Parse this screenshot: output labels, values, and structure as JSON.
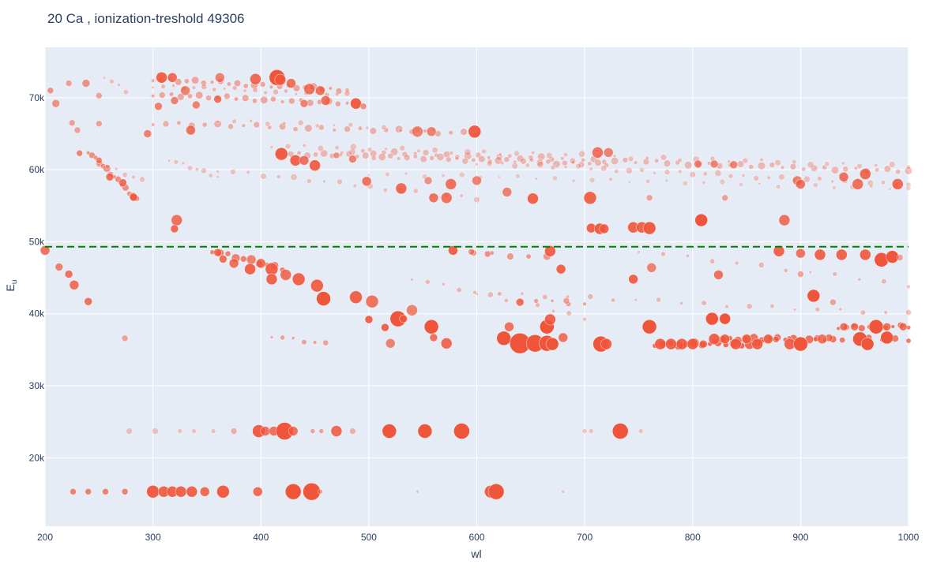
{
  "chart_data": {
    "type": "scatter",
    "title": "20 Ca , ionization-treshold 49306",
    "xlabel": "wl",
    "ylabel_main": "E",
    "ylabel_sub": "u",
    "xlim": [
      200,
      1000
    ],
    "ylim": [
      10500,
      77000
    ],
    "x_ticks": [
      {
        "value": 200,
        "label": "200"
      },
      {
        "value": 300,
        "label": "300"
      },
      {
        "value": 400,
        "label": "400"
      },
      {
        "value": 500,
        "label": "500"
      },
      {
        "value": 600,
        "label": "600"
      },
      {
        "value": 700,
        "label": "700"
      },
      {
        "value": 800,
        "label": "800"
      },
      {
        "value": 900,
        "label": "900"
      },
      {
        "value": 1000,
        "label": "1000"
      }
    ],
    "y_ticks": [
      {
        "value": 20000,
        "label": "20k"
      },
      {
        "value": 30000,
        "label": "30k"
      },
      {
        "value": 40000,
        "label": "40k"
      },
      {
        "value": 50000,
        "label": "50k"
      },
      {
        "value": 60000,
        "label": "60k"
      },
      {
        "value": 70000,
        "label": "70k"
      }
    ],
    "threshold": {
      "value": 49306,
      "color": "#008000",
      "style": "dash"
    },
    "grid": true,
    "plot_bg": "#e5ecf6",
    "marker_color": "#ef553b",
    "points": [
      [
        226,
        15300,
        4,
        0.7
      ],
      [
        240,
        15300,
        4,
        0.7
      ],
      [
        256,
        15300,
        4,
        0.7
      ],
      [
        274,
        15300,
        4,
        0.7
      ],
      [
        300,
        15300,
        8,
        0.95
      ],
      [
        310,
        15300,
        7,
        0.9
      ],
      [
        318,
        15300,
        7,
        0.9
      ],
      [
        326,
        15300,
        7,
        0.9
      ],
      [
        336,
        15300,
        7,
        0.9
      ],
      [
        348,
        15300,
        6,
        0.85
      ],
      [
        365,
        15300,
        8,
        0.95
      ],
      [
        397,
        15300,
        6,
        0.85
      ],
      [
        430,
        15300,
        10,
        1
      ],
      [
        447,
        15300,
        11,
        1
      ],
      [
        455,
        15300,
        3,
        0.5
      ],
      [
        545,
        15300,
        2,
        0.3
      ],
      [
        613,
        15300,
        8,
        0.95
      ],
      [
        618,
        15300,
        10,
        1
      ],
      [
        680,
        15300,
        2,
        0.3
      ],
      [
        278,
        23700,
        4,
        0.3
      ],
      [
        302,
        23700,
        4,
        0.3
      ],
      [
        325,
        23700,
        3,
        0.3
      ],
      [
        338,
        23700,
        3,
        0.3
      ],
      [
        356,
        23700,
        3,
        0.3
      ],
      [
        375,
        23700,
        4,
        0.4
      ],
      [
        398,
        23700,
        8,
        0.95
      ],
      [
        404,
        23700,
        6,
        0.8
      ],
      [
        412,
        23700,
        6,
        0.8
      ],
      [
        422,
        23700,
        11,
        1
      ],
      [
        430,
        23700,
        6,
        0.8
      ],
      [
        448,
        23700,
        3,
        0.5
      ],
      [
        456,
        23700,
        3,
        0.5
      ],
      [
        470,
        23700,
        7,
        0.85
      ],
      [
        485,
        23700,
        4,
        0.4
      ],
      [
        519,
        23700,
        9,
        1
      ],
      [
        552,
        23700,
        9,
        1
      ],
      [
        586,
        23700,
        10,
        1
      ],
      [
        700,
        23700,
        3,
        0.3
      ],
      [
        706,
        23700,
        3,
        0.3
      ],
      [
        733,
        23700,
        10,
        1
      ],
      [
        752,
        23700,
        3,
        0.3
      ],
      [
        625,
        36600,
        9,
        1
      ],
      [
        640,
        35900,
        13,
        1
      ],
      [
        654,
        35900,
        11,
        1
      ],
      [
        665,
        35900,
        10,
        1
      ],
      [
        670,
        35800,
        8,
        1
      ],
      [
        715,
        35800,
        10,
        1
      ],
      [
        720,
        35800,
        7,
        0.9
      ],
      [
        770,
        35800,
        7,
        0.9
      ],
      [
        780,
        35800,
        7,
        0.9
      ],
      [
        790,
        35800,
        7,
        0.9
      ],
      [
        800,
        35800,
        7,
        0.9
      ],
      [
        810,
        35800,
        5,
        0.8
      ],
      [
        820,
        36500,
        7,
        0.9
      ],
      [
        830,
        36500,
        6,
        0.9
      ],
      [
        840,
        35800,
        7,
        0.9
      ],
      [
        850,
        36500,
        6,
        0.9
      ],
      [
        860,
        35800,
        7,
        0.9
      ],
      [
        870,
        36500,
        6,
        0.9
      ],
      [
        890,
        35800,
        7,
        0.9
      ],
      [
        900,
        35800,
        9,
        1
      ],
      [
        920,
        36500,
        6,
        0.8
      ],
      [
        955,
        36500,
        9,
        1
      ],
      [
        962,
        35800,
        8,
        1
      ],
      [
        980,
        36700,
        8,
        1
      ],
      [
        995,
        38200,
        5,
        0.8
      ],
      [
        520,
        35900,
        6,
        0.7
      ],
      [
        560,
        36700,
        5,
        0.8
      ],
      [
        572,
        35900,
        7,
        0.85
      ],
      [
        630,
        38200,
        6,
        0.8
      ],
      [
        665,
        38200,
        9,
        1
      ],
      [
        668,
        39200,
        7,
        0.9
      ],
      [
        680,
        36700,
        6,
        0.8
      ],
      [
        760,
        38200,
        9,
        1
      ],
      [
        818,
        39300,
        8,
        1
      ],
      [
        830,
        39300,
        7,
        1
      ],
      [
        940,
        38200,
        5,
        0.8
      ],
      [
        950,
        38200,
        5,
        0.8
      ],
      [
        970,
        38200,
        9,
        1
      ],
      [
        980,
        38200,
        5,
        0.8
      ],
      [
        912,
        42500,
        8,
        1
      ],
      [
        500,
        39200,
        5,
        0.9
      ],
      [
        515,
        38100,
        5,
        0.9
      ],
      [
        527,
        39300,
        10,
        1
      ],
      [
        532,
        39300,
        5,
        0.9
      ],
      [
        540,
        40500,
        7,
        0.7
      ],
      [
        558,
        38200,
        9,
        1
      ],
      [
        640,
        41600,
        5,
        0.8
      ],
      [
        683,
        41800,
        4,
        0.5
      ],
      [
        900,
        45500,
        4,
        0.5
      ],
      [
        930,
        41600,
        4,
        0.5
      ],
      [
        360,
        48500,
        5,
        0.8
      ],
      [
        365,
        47600,
        5,
        0.8
      ],
      [
        375,
        47000,
        6,
        0.8
      ],
      [
        390,
        46200,
        7,
        0.9
      ],
      [
        400,
        47000,
        6,
        0.8
      ],
      [
        410,
        46200,
        8,
        0.9
      ],
      [
        410,
        44800,
        7,
        0.9
      ],
      [
        423,
        45400,
        7,
        0.8
      ],
      [
        435,
        44800,
        8,
        0.9
      ],
      [
        452,
        43900,
        8,
        0.9
      ],
      [
        458,
        42100,
        9,
        1
      ],
      [
        488,
        42300,
        8,
        0.9
      ],
      [
        503,
        41700,
        8,
        0.8
      ],
      [
        578,
        48800,
        6,
        0.9
      ],
      [
        595,
        48600,
        4,
        0.6
      ],
      [
        610,
        48300,
        4,
        0.6
      ],
      [
        668,
        48700,
        7,
        0.9
      ],
      [
        678,
        46200,
        6,
        0.9
      ],
      [
        745,
        44800,
        6,
        0.9
      ],
      [
        762,
        46400,
        6,
        0.7
      ],
      [
        824,
        45400,
        6,
        0.8
      ],
      [
        880,
        48700,
        7,
        0.9
      ],
      [
        900,
        48400,
        6,
        0.8
      ],
      [
        918,
        48200,
        7,
        0.9
      ],
      [
        938,
        48200,
        7,
        0.9
      ],
      [
        960,
        48200,
        7,
        0.9
      ],
      [
        975,
        47500,
        9,
        1
      ],
      [
        985,
        47900,
        8,
        1
      ],
      [
        992,
        47800,
        4,
        0.5
      ],
      [
        200,
        48800,
        6,
        0.8
      ],
      [
        213,
        46500,
        5,
        0.7
      ],
      [
        222,
        45500,
        5,
        0.8
      ],
      [
        227,
        44000,
        6,
        0.8
      ],
      [
        240,
        41700,
        5,
        0.8
      ],
      [
        274,
        36600,
        4,
        0.5
      ],
      [
        322,
        53000,
        7,
        0.8
      ],
      [
        320,
        51800,
        5,
        0.85
      ],
      [
        706,
        51900,
        6,
        0.9
      ],
      [
        714,
        51800,
        7,
        0.95
      ],
      [
        718,
        51800,
        6,
        0.9
      ],
      [
        745,
        52000,
        7,
        0.9
      ],
      [
        753,
        52000,
        7,
        0.9
      ],
      [
        760,
        51900,
        8,
        0.95
      ],
      [
        808,
        53000,
        8,
        1
      ],
      [
        885,
        53000,
        7,
        0.8
      ],
      [
        260,
        59000,
        5,
        0.8
      ],
      [
        272,
        58200,
        5,
        0.8
      ],
      [
        282,
        56200,
        5,
        0.9
      ],
      [
        250,
        61300,
        4,
        0.7
      ],
      [
        232,
        62300,
        4,
        0.7
      ],
      [
        555,
        58500,
        5,
        0.6
      ],
      [
        576,
        58000,
        7,
        0.8
      ],
      [
        600,
        58500,
        6,
        0.7
      ],
      [
        628,
        56900,
        6,
        0.7
      ],
      [
        652,
        56000,
        7,
        0.9
      ],
      [
        705,
        56100,
        8,
        0.9
      ],
      [
        760,
        56100,
        4,
        0.5
      ],
      [
        830,
        56100,
        4,
        0.5
      ],
      [
        897,
        58500,
        6,
        0.7
      ],
      [
        900,
        58000,
        6,
        0.8
      ],
      [
        940,
        59000,
        6,
        0.8
      ],
      [
        953,
        58000,
        7,
        0.8
      ],
      [
        960,
        59400,
        7,
        0.85
      ],
      [
        990,
        58000,
        7,
        0.85
      ],
      [
        419,
        62200,
        8,
        0.95
      ],
      [
        432,
        61300,
        7,
        0.9
      ],
      [
        440,
        61300,
        6,
        0.8
      ],
      [
        450,
        60600,
        7,
        0.9
      ],
      [
        470,
        62000,
        4,
        0.6
      ],
      [
        485,
        61500,
        5,
        0.7
      ],
      [
        498,
        58400,
        6,
        0.8
      ],
      [
        530,
        57400,
        7,
        0.85
      ],
      [
        560,
        56100,
        6,
        0.8
      ],
      [
        572,
        56100,
        7,
        0.8
      ],
      [
        712,
        62400,
        7,
        0.8
      ],
      [
        722,
        62400,
        6,
        0.7
      ],
      [
        805,
        60800,
        5,
        0.7
      ],
      [
        820,
        60800,
        5,
        0.7
      ],
      [
        838,
        60700,
        5,
        0.7
      ],
      [
        598,
        65300,
        8,
        0.95
      ],
      [
        558,
        65300,
        6,
        0.7
      ],
      [
        545,
        65300,
        7,
        0.7
      ],
      [
        335,
        65500,
        6,
        0.8
      ],
      [
        295,
        65000,
        5,
        0.7
      ],
      [
        250,
        66400,
        4,
        0.5
      ],
      [
        225,
        66500,
        4,
        0.5
      ],
      [
        230,
        65500,
        4,
        0.5
      ],
      [
        205,
        71000,
        4,
        0.6
      ],
      [
        210,
        69200,
        5,
        0.6
      ],
      [
        222,
        72000,
        4,
        0.5
      ],
      [
        238,
        72000,
        5,
        0.6
      ],
      [
        250,
        70300,
        4,
        0.5
      ],
      [
        308,
        72800,
        7,
        0.9
      ],
      [
        318,
        72800,
        6,
        0.85
      ],
      [
        330,
        71000,
        6,
        0.7
      ],
      [
        362,
        72800,
        6,
        0.7
      ],
      [
        395,
        72600,
        7,
        0.85
      ],
      [
        415,
        72800,
        10,
        1
      ],
      [
        418,
        72500,
        7,
        0.9
      ],
      [
        428,
        72000,
        6,
        0.8
      ],
      [
        445,
        71200,
        7,
        0.8
      ],
      [
        455,
        71000,
        6,
        0.8
      ],
      [
        460,
        69600,
        6,
        0.8
      ],
      [
        488,
        69200,
        7,
        0.95
      ],
      [
        495,
        68800,
        4,
        0.6
      ],
      [
        360,
        69800,
        5,
        0.8
      ],
      [
        340,
        69000,
        5,
        0.7
      ],
      [
        320,
        69600,
        5,
        0.7
      ],
      [
        305,
        68800,
        5,
        0.7
      ],
      [
        440,
        69200,
        5,
        0.7
      ]
    ],
    "bands": [
      {
        "x0": 475,
        "x1": 1000,
        "y0": 62600,
        "y1": 59800,
        "n": 55,
        "r": 4,
        "a": 0.35
      },
      {
        "x0": 420,
        "x1": 720,
        "y0": 62300,
        "y1": 60800,
        "n": 40,
        "r": 4,
        "a": 0.35
      },
      {
        "x0": 410,
        "x1": 1000,
        "y0": 63400,
        "y1": 60500,
        "n": 40,
        "r": 3.5,
        "a": 0.3
      },
      {
        "x0": 600,
        "x1": 1000,
        "y0": 61000,
        "y1": 58000,
        "n": 35,
        "r": 3.5,
        "a": 0.3
      },
      {
        "x0": 500,
        "x1": 1000,
        "y0": 59500,
        "y1": 57400,
        "n": 30,
        "r": 3,
        "a": 0.25
      },
      {
        "x0": 300,
        "x1": 600,
        "y0": 66500,
        "y1": 65100,
        "n": 26,
        "r": 4,
        "a": 0.4
      },
      {
        "x0": 300,
        "x1": 480,
        "y0": 72600,
        "y1": 71100,
        "n": 24,
        "r": 4,
        "a": 0.45
      },
      {
        "x0": 300,
        "x1": 480,
        "y0": 70500,
        "y1": 69200,
        "n": 22,
        "r": 4,
        "a": 0.45
      },
      {
        "x0": 300,
        "x1": 480,
        "y0": 71700,
        "y1": 70400,
        "n": 20,
        "r": 3,
        "a": 0.35
      },
      {
        "x0": 360,
        "x1": 560,
        "y0": 66900,
        "y1": 65500,
        "n": 14,
        "r": 3,
        "a": 0.3
      },
      {
        "x0": 240,
        "x1": 285,
        "y0": 62600,
        "y1": 55900,
        "n": 14,
        "r": 4,
        "a": 0.6
      },
      {
        "x0": 250,
        "x1": 290,
        "y0": 61000,
        "y1": 58500,
        "n": 6,
        "r": 3,
        "a": 0.3
      },
      {
        "x0": 255,
        "x1": 275,
        "y0": 73000,
        "y1": 71000,
        "n": 4,
        "r": 3,
        "a": 0.3
      },
      {
        "x0": 315,
        "x1": 360,
        "y0": 61500,
        "y1": 59000,
        "n": 8,
        "r": 3,
        "a": 0.3
      },
      {
        "x0": 360,
        "x1": 600,
        "y0": 60000,
        "y1": 56000,
        "n": 18,
        "r": 3.5,
        "a": 0.3
      },
      {
        "x0": 355,
        "x1": 420,
        "y0": 48800,
        "y1": 46200,
        "n": 10,
        "r": 5,
        "a": 0.7
      },
      {
        "x0": 580,
        "x1": 665,
        "y0": 48700,
        "y1": 47800,
        "n": 6,
        "r": 4,
        "a": 0.55
      },
      {
        "x0": 765,
        "x1": 860,
        "y0": 35800,
        "y1": 35800,
        "n": 14,
        "r": 5,
        "a": 0.85
      },
      {
        "x0": 820,
        "x1": 930,
        "y0": 36500,
        "y1": 36500,
        "n": 16,
        "r": 4.5,
        "a": 0.8
      },
      {
        "x0": 865,
        "x1": 1000,
        "y0": 36500,
        "y1": 36500,
        "n": 12,
        "r": 4,
        "a": 0.75
      },
      {
        "x0": 935,
        "x1": 1000,
        "y0": 38200,
        "y1": 38200,
        "n": 10,
        "r": 4,
        "a": 0.75
      },
      {
        "x0": 600,
        "x1": 1000,
        "y0": 43000,
        "y1": 40000,
        "n": 20,
        "r": 3,
        "a": 0.35
      },
      {
        "x0": 540,
        "x1": 700,
        "y0": 45000,
        "y1": 39500,
        "n": 12,
        "r": 3,
        "a": 0.35
      },
      {
        "x0": 750,
        "x1": 1000,
        "y0": 48800,
        "y1": 44000,
        "n": 12,
        "r": 3,
        "a": 0.35
      },
      {
        "x0": 410,
        "x1": 460,
        "y0": 37000,
        "y1": 35800,
        "n": 6,
        "r": 3,
        "a": 0.5
      },
      {
        "x0": 640,
        "x1": 700,
        "y0": 42000,
        "y1": 41400,
        "n": 5,
        "r": 3,
        "a": 0.5
      }
    ]
  }
}
